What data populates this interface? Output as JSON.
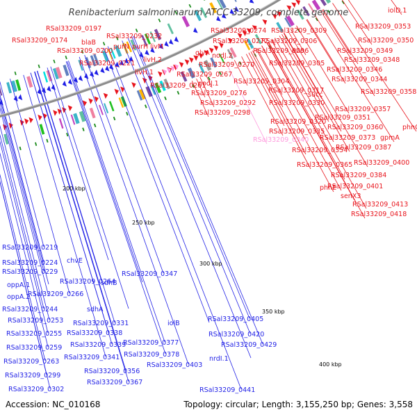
{
  "title": "Renibacterium salmoninarum ATCC 33209, complete genome",
  "accession": "Accession: NC_010168",
  "summary": "Topology: circular; Length: 3,155,250 bp; Genes: 3,558",
  "colors": {
    "forward_gene": "#e8141c",
    "reverse_gene": "#1f1fe6",
    "highlight_gene": "#ff99dd",
    "backbone": "#8c8c8c",
    "rna_marker": "#1e8c1e"
  },
  "scale_ticks": [
    "200 kbp",
    "250 kbp",
    "300 kbp",
    "350 kbp",
    "400 kbp"
  ],
  "forward_labels": [
    {
      "text": "iolD.1",
      "kind": "forward"
    },
    {
      "text": "RSal33209_0197",
      "kind": "forward"
    },
    {
      "text": "RSal33209_0232",
      "kind": "forward"
    },
    {
      "text": "RSal33209_0274",
      "kind": "forward"
    },
    {
      "text": "RSal33209_0309",
      "kind": "forward"
    },
    {
      "text": "RSal33209_0353",
      "kind": "forward"
    },
    {
      "text": "RSal33209_0174",
      "kind": "forward"
    },
    {
      "text": "blaB",
      "kind": "forward"
    },
    {
      "text": "purN",
      "kind": "forward"
    },
    {
      "text": "purH",
      "kind": "forward"
    },
    {
      "text": "livM",
      "kind": "forward"
    },
    {
      "text": "RSal33209_0272",
      "kind": "forward"
    },
    {
      "text": "RSal33209_0306",
      "kind": "forward"
    },
    {
      "text": "RSal33209_0350",
      "kind": "forward"
    },
    {
      "text": "RSal33209_0200",
      "kind": "forward"
    },
    {
      "text": "glyA",
      "kind": "forward"
    },
    {
      "text": "RSal33209_0296",
      "kind": "forward"
    },
    {
      "text": "eno",
      "kind": "forward"
    },
    {
      "text": "RSal33209_0349",
      "kind": "forward"
    },
    {
      "text": "livH.2",
      "kind": "forward"
    },
    {
      "text": "nodJ.2",
      "kind": "forward"
    },
    {
      "text": "RSal33209_0348",
      "kind": "forward"
    },
    {
      "text": "RSal33209_0221",
      "kind": "forward"
    },
    {
      "text": "RSal33209_0270",
      "kind": "forward"
    },
    {
      "text": "RSal33209_0305",
      "kind": "forward"
    },
    {
      "text": "livH.1",
      "kind": "forward"
    },
    {
      "text": "RSal33209_0346",
      "kind": "forward"
    },
    {
      "text": "RSal33209_0267",
      "kind": "forward"
    },
    {
      "text": "RSal33209_0344",
      "kind": "forward"
    },
    {
      "text": "RSal33209_0304",
      "kind": "forward"
    },
    {
      "text": "nodJ.1",
      "kind": "forward"
    },
    {
      "text": "RSal33209_0261",
      "kind": "forward"
    },
    {
      "text": "RSal33209_0317",
      "kind": "forward"
    },
    {
      "text": "succ",
      "kind": "forward"
    },
    {
      "text": "RSal33209_0358",
      "kind": "forward"
    },
    {
      "text": "RSal33209_0276",
      "kind": "forward"
    },
    {
      "text": "RSal33209_0330",
      "kind": "forward"
    },
    {
      "text": "RSal33209_0292",
      "kind": "forward"
    },
    {
      "text": "RSal33209_0357",
      "kind": "forward"
    },
    {
      "text": "RSal33209_0298",
      "kind": "forward"
    },
    {
      "text": "RSal33209_0351",
      "kind": "forward"
    },
    {
      "text": "RSal33209_0320",
      "kind": "forward"
    },
    {
      "text": "RSal33209_0360",
      "kind": "forward"
    },
    {
      "text": "phnC",
      "kind": "forward"
    },
    {
      "text": "RSal33209_0335",
      "kind": "forward"
    },
    {
      "text": "RSal33209_0373",
      "kind": "forward"
    },
    {
      "text": "gpmA",
      "kind": "forward"
    },
    {
      "text": "RSal33209_0340",
      "kind": "highlight"
    },
    {
      "text": "RSal33209_0387",
      "kind": "forward"
    },
    {
      "text": "RSal33209_0354",
      "kind": "forward"
    },
    {
      "text": "RSal33209_0400",
      "kind": "forward"
    },
    {
      "text": "RSal33209_0365",
      "kind": "forward"
    },
    {
      "text": "RSal33209_0384",
      "kind": "forward"
    },
    {
      "text": "phnE",
      "kind": "forward"
    },
    {
      "text": "RSal33209_0401",
      "kind": "forward"
    },
    {
      "text": "senX3",
      "kind": "forward"
    },
    {
      "text": "RSal33209_0413",
      "kind": "forward"
    },
    {
      "text": "RSal33209_0418",
      "kind": "forward"
    }
  ],
  "reverse_labels": [
    {
      "text": "RSal33209_0219"
    },
    {
      "text": "RSal33209_0224"
    },
    {
      "text": "chvE"
    },
    {
      "text": "RSal33209_0229"
    },
    {
      "text": "RSal33209_0264"
    },
    {
      "text": "oppA.1"
    },
    {
      "text": "sdhB"
    },
    {
      "text": "RSal33209_0347"
    },
    {
      "text": "RSal33209_0266"
    },
    {
      "text": "oppA.2"
    },
    {
      "text": "RSal33209_0244"
    },
    {
      "text": "sdhA"
    },
    {
      "text": "RSal33209_0253"
    },
    {
      "text": "RSal33209_0331"
    },
    {
      "text": "RSal33209_0405"
    },
    {
      "text": "iolB"
    },
    {
      "text": "RSal33209_0255"
    },
    {
      "text": "RSal33209_0338"
    },
    {
      "text": "RSal33209_0420"
    },
    {
      "text": "RSal33209_0377"
    },
    {
      "text": "RSal33209_0429"
    },
    {
      "text": "RSal33209_0259"
    },
    {
      "text": "RSal33209_0339"
    },
    {
      "text": "RSal33209_0378"
    },
    {
      "text": "RSal33209_0263"
    },
    {
      "text": "RSal33209_0341"
    },
    {
      "text": "RSal33209_0403"
    },
    {
      "text": "nrdI.1"
    },
    {
      "text": "RSal33209_0356"
    },
    {
      "text": "RSal33209_0299"
    },
    {
      "text": "RSal33209_0367"
    },
    {
      "text": "RSal33209_0302"
    },
    {
      "text": "RSal33209_0441"
    }
  ]
}
